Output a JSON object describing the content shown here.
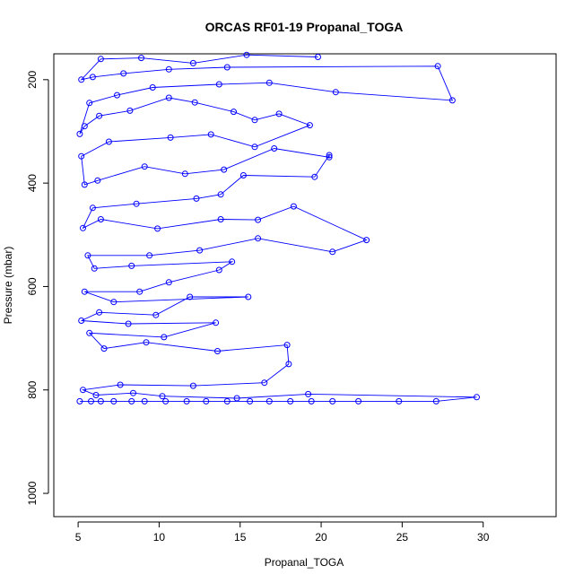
{
  "chart_data": {
    "type": "scatter",
    "title": "ORCAS RF01-19 Propanal_TOGA",
    "xlabel": "Propanal_TOGA",
    "ylabel": "Pressure (mbar)",
    "xlim": [
      3.5,
      34.5
    ],
    "ylim": [
      1045,
      150
    ],
    "y_reversed": true,
    "x_ticks": [
      5,
      10,
      15,
      20,
      25,
      30
    ],
    "y_ticks": [
      200,
      400,
      600,
      800,
      1000
    ],
    "series_color": "#0000ff",
    "marker": "open-circle",
    "connected": true,
    "points": [
      [
        5.1,
        822
      ],
      [
        5.8,
        822
      ],
      [
        6.4,
        822
      ],
      [
        7.2,
        822
      ],
      [
        8.3,
        822
      ],
      [
        9.1,
        822
      ],
      [
        10.4,
        822
      ],
      [
        11.7,
        822
      ],
      [
        12.9,
        822
      ],
      [
        14.2,
        822
      ],
      [
        15.6,
        822
      ],
      [
        16.8,
        822
      ],
      [
        18.1,
        822
      ],
      [
        19.4,
        822
      ],
      [
        20.7,
        822
      ],
      [
        22.3,
        822
      ],
      [
        24.8,
        822
      ],
      [
        27.1,
        822
      ],
      [
        29.6,
        814
      ],
      [
        19.2,
        808
      ],
      [
        14.8,
        816
      ],
      [
        10.2,
        812
      ],
      [
        8.4,
        806
      ],
      [
        6.1,
        810
      ],
      [
        5.3,
        800
      ],
      [
        7.6,
        790
      ],
      [
        12.1,
        792
      ],
      [
        16.5,
        786
      ],
      [
        18.0,
        750
      ],
      [
        17.9,
        713
      ],
      [
        13.6,
        725
      ],
      [
        9.2,
        708
      ],
      [
        6.6,
        720
      ],
      [
        5.7,
        690
      ],
      [
        10.3,
        698
      ],
      [
        13.5,
        670
      ],
      [
        8.1,
        672
      ],
      [
        5.2,
        666
      ],
      [
        6.3,
        650
      ],
      [
        9.8,
        655
      ],
      [
        11.9,
        620
      ],
      [
        15.5,
        620
      ],
      [
        7.2,
        630
      ],
      [
        5.4,
        610
      ],
      [
        8.8,
        610
      ],
      [
        10.6,
        592
      ],
      [
        13.7,
        568
      ],
      [
        14.5,
        552
      ],
      [
        8.3,
        560
      ],
      [
        6.0,
        565
      ],
      [
        5.6,
        540
      ],
      [
        9.4,
        540
      ],
      [
        12.5,
        530
      ],
      [
        16.1,
        507
      ],
      [
        20.7,
        533
      ],
      [
        22.8,
        510
      ],
      [
        18.3,
        445
      ],
      [
        16.1,
        471
      ],
      [
        13.8,
        470
      ],
      [
        9.9,
        488
      ],
      [
        6.4,
        470
      ],
      [
        5.3,
        487
      ],
      [
        5.9,
        448
      ],
      [
        8.6,
        440
      ],
      [
        12.3,
        430
      ],
      [
        13.8,
        422
      ],
      [
        15.2,
        385
      ],
      [
        19.6,
        388
      ],
      [
        20.5,
        346
      ],
      [
        20.5,
        350
      ],
      [
        17.1,
        333
      ],
      [
        14.0,
        374
      ],
      [
        11.6,
        382
      ],
      [
        9.1,
        368
      ],
      [
        6.2,
        395
      ],
      [
        5.4,
        403
      ],
      [
        5.2,
        348
      ],
      [
        6.9,
        320
      ],
      [
        10.7,
        312
      ],
      [
        13.2,
        306
      ],
      [
        15.9,
        330
      ],
      [
        19.3,
        288
      ],
      [
        17.4,
        266
      ],
      [
        15.9,
        278
      ],
      [
        14.6,
        262
      ],
      [
        12.2,
        244
      ],
      [
        10.6,
        235
      ],
      [
        8.2,
        260
      ],
      [
        6.3,
        270
      ],
      [
        5.4,
        290
      ],
      [
        5.1,
        305
      ],
      [
        5.7,
        245
      ],
      [
        7.4,
        230
      ],
      [
        9.6,
        215
      ],
      [
        13.7,
        209
      ],
      [
        16.8,
        206
      ],
      [
        20.9,
        224
      ],
      [
        28.1,
        240
      ],
      [
        27.2,
        174
      ],
      [
        14.2,
        176
      ],
      [
        10.6,
        180
      ],
      [
        7.8,
        188
      ],
      [
        5.9,
        195
      ],
      [
        5.2,
        200
      ],
      [
        6.4,
        160
      ],
      [
        8.9,
        158
      ],
      [
        12.1,
        168
      ],
      [
        15.4,
        152
      ],
      [
        19.8,
        156
      ]
    ]
  }
}
